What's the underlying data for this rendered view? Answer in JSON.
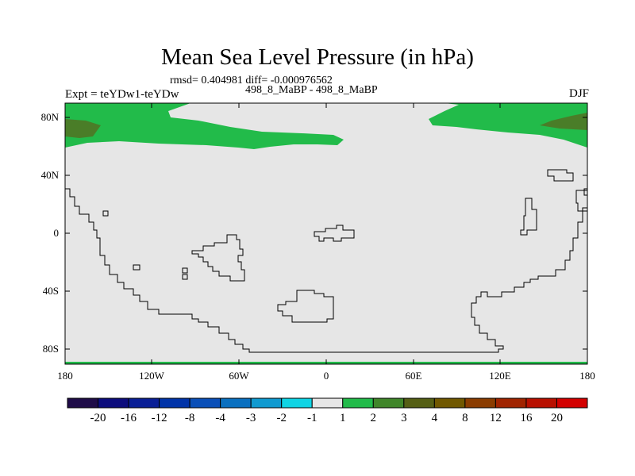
{
  "title": "Mean Sea Level Pressure (in hPa)",
  "stats": "rmsd= 0.404981 diff= -0.000976562",
  "experiment": "Expt = teYDw1-teYDw",
  "period": "498_8_MaBP - 498_8_MaBP",
  "season": "DJF",
  "y_axis": {
    "ticks": [
      "80N",
      "40N",
      "0",
      "40S",
      "80S"
    ],
    "range": [
      -90,
      90
    ]
  },
  "x_axis": {
    "ticks": [
      "180",
      "120W",
      "60W",
      "0",
      "60E",
      "120E",
      "180"
    ],
    "range": [
      -180,
      180
    ]
  },
  "colorbar": {
    "colors": [
      "#1f0c48",
      "#0d0d7d",
      "#0a1f96",
      "#0033a8",
      "#0a4fb8",
      "#0a70c0",
      "#109ad0",
      "#10d4e4",
      "#e6e6e6",
      "#22bb4a",
      "#40862a",
      "#555f15",
      "#705800",
      "#8a3c00",
      "#a02400",
      "#b81000",
      "#d30000"
    ],
    "labels": [
      "-20",
      "-16",
      "-12",
      "-8",
      "-4",
      "-3",
      "-2",
      "-1",
      "1",
      "2",
      "3",
      "4",
      "8",
      "12",
      "16",
      "20"
    ]
  },
  "map_colors": {
    "background": "#e6e6e6",
    "band_2": "#22bb4a",
    "band_3": "#4a7d28"
  }
}
